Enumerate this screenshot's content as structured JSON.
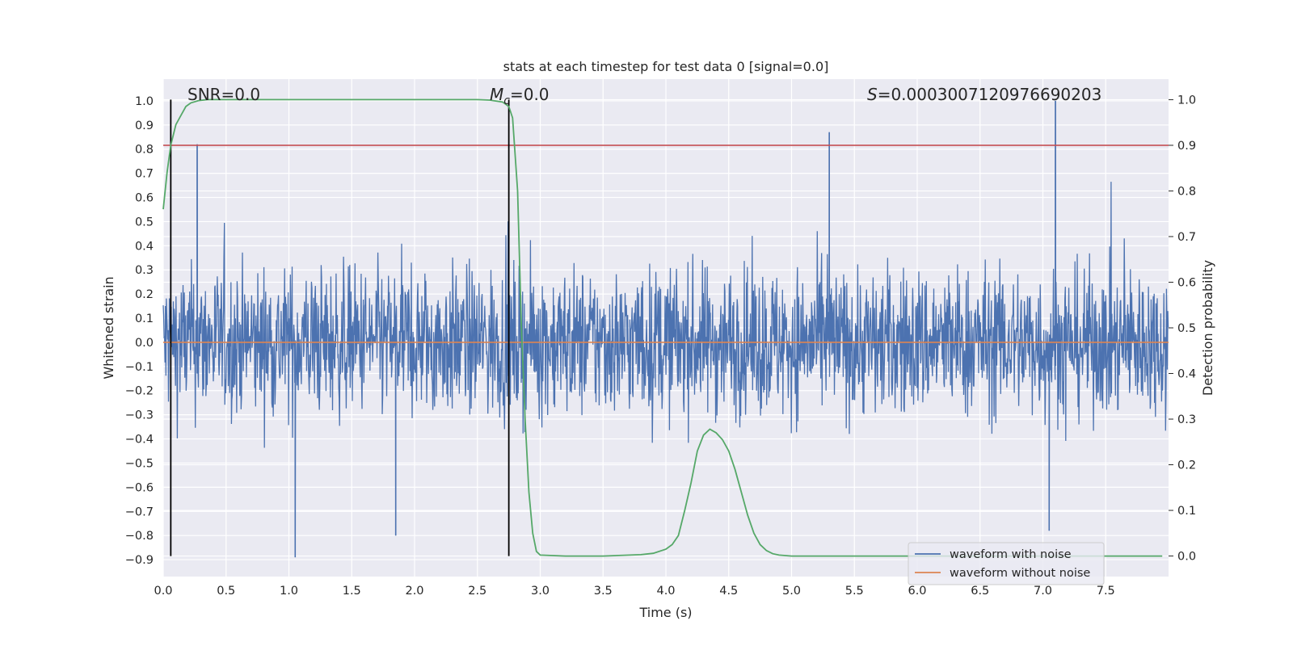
{
  "chart_data": {
    "type": "line",
    "title": "stats at each timestep for test data 0 [signal=0.0]",
    "xlabel": "Time (s)",
    "ylabel": "Whitened strain",
    "y2label": "Detection probability",
    "xlim": [
      0.0,
      8.0
    ],
    "ylim": [
      -0.97,
      1.09
    ],
    "y2lim": [
      -0.045,
      1.045
    ],
    "xticks": [
      "0.0",
      "0.5",
      "1.0",
      "1.5",
      "2.0",
      "2.5",
      "3.0",
      "3.5",
      "4.0",
      "4.5",
      "5.0",
      "5.5",
      "6.0",
      "6.5",
      "7.0",
      "7.5"
    ],
    "yticks": [
      "1.0",
      "0.9",
      "0.8",
      "0.7",
      "0.6",
      "0.5",
      "0.4",
      "0.3",
      "0.2",
      "0.1",
      "0.0",
      "−0.1",
      "−0.2",
      "−0.3",
      "−0.4",
      "−0.5",
      "−0.6",
      "−0.7",
      "−0.8",
      "−0.9"
    ],
    "y2ticks": [
      "1.0",
      "0.9",
      "0.8",
      "0.7",
      "0.6",
      "0.5",
      "0.4",
      "0.3",
      "0.2",
      "0.1",
      "0.0"
    ],
    "annotations": {
      "snr": "SNR=0.0",
      "mc_symbol": "M",
      "mc_subscript": "c",
      "mc_value": "=0.0",
      "s_symbol": "S",
      "s_value": "=0.0003007120976690203"
    },
    "vertical_lines_x": [
      0.06,
      2.75
    ],
    "threshold_line": {
      "axis": "right",
      "y": 0.9,
      "color": "#c44e52"
    },
    "legend": {
      "placement": "lower-right",
      "entries": [
        {
          "label": "waveform with noise",
          "color": "#4c72b0"
        },
        {
          "label": "waveform without noise",
          "color": "#dd8452"
        }
      ]
    },
    "series": [
      {
        "name": "waveform with noise",
        "axis": "left",
        "color": "#4c72b0",
        "description": "dense whitened noise, amplitude mostly within ±0.5, peaks up to about 1.0 and down to about -0.89",
        "sample_peaks": [
          {
            "x": 0.27,
            "y": 0.82
          },
          {
            "x": 1.05,
            "y": -0.89
          },
          {
            "x": 1.85,
            "y": -0.8
          },
          {
            "x": 5.3,
            "y": 0.87
          },
          {
            "x": 7.1,
            "y": 1.0
          },
          {
            "x": 7.05,
            "y": -0.78
          }
        ]
      },
      {
        "name": "waveform without noise",
        "axis": "left",
        "color": "#dd8452",
        "x": [
          0.0,
          8.0
        ],
        "y": [
          0.0,
          0.0
        ]
      },
      {
        "name": "detection probability",
        "axis": "right",
        "color": "#55a868",
        "x": [
          0.0,
          0.03,
          0.06,
          0.1,
          0.13,
          0.18,
          0.22,
          0.28,
          0.35,
          0.5,
          1.0,
          1.5,
          2.0,
          2.5,
          2.6,
          2.7,
          2.75,
          2.78,
          2.82,
          2.85,
          2.88,
          2.91,
          2.94,
          2.97,
          3.0,
          3.2,
          3.5,
          3.8,
          3.9,
          4.0,
          4.05,
          4.1,
          4.15,
          4.2,
          4.25,
          4.3,
          4.35,
          4.4,
          4.45,
          4.5,
          4.55,
          4.6,
          4.65,
          4.7,
          4.75,
          4.8,
          4.85,
          4.9,
          5.0,
          5.5,
          6.0,
          6.5,
          7.0,
          7.5,
          7.95
        ],
        "y": [
          0.76,
          0.84,
          0.9,
          0.945,
          0.96,
          0.985,
          0.993,
          0.998,
          1.0,
          1.0,
          1.0,
          1.0,
          1.0,
          1.0,
          0.999,
          0.995,
          0.985,
          0.96,
          0.8,
          0.5,
          0.3,
          0.14,
          0.05,
          0.01,
          0.002,
          0.0,
          0.0,
          0.003,
          0.006,
          0.015,
          0.025,
          0.045,
          0.1,
          0.16,
          0.23,
          0.265,
          0.278,
          0.27,
          0.255,
          0.23,
          0.19,
          0.14,
          0.09,
          0.05,
          0.025,
          0.012,
          0.005,
          0.002,
          0.0,
          0.0,
          0.0,
          0.0,
          0.0,
          0.0,
          0.0
        ]
      }
    ]
  }
}
